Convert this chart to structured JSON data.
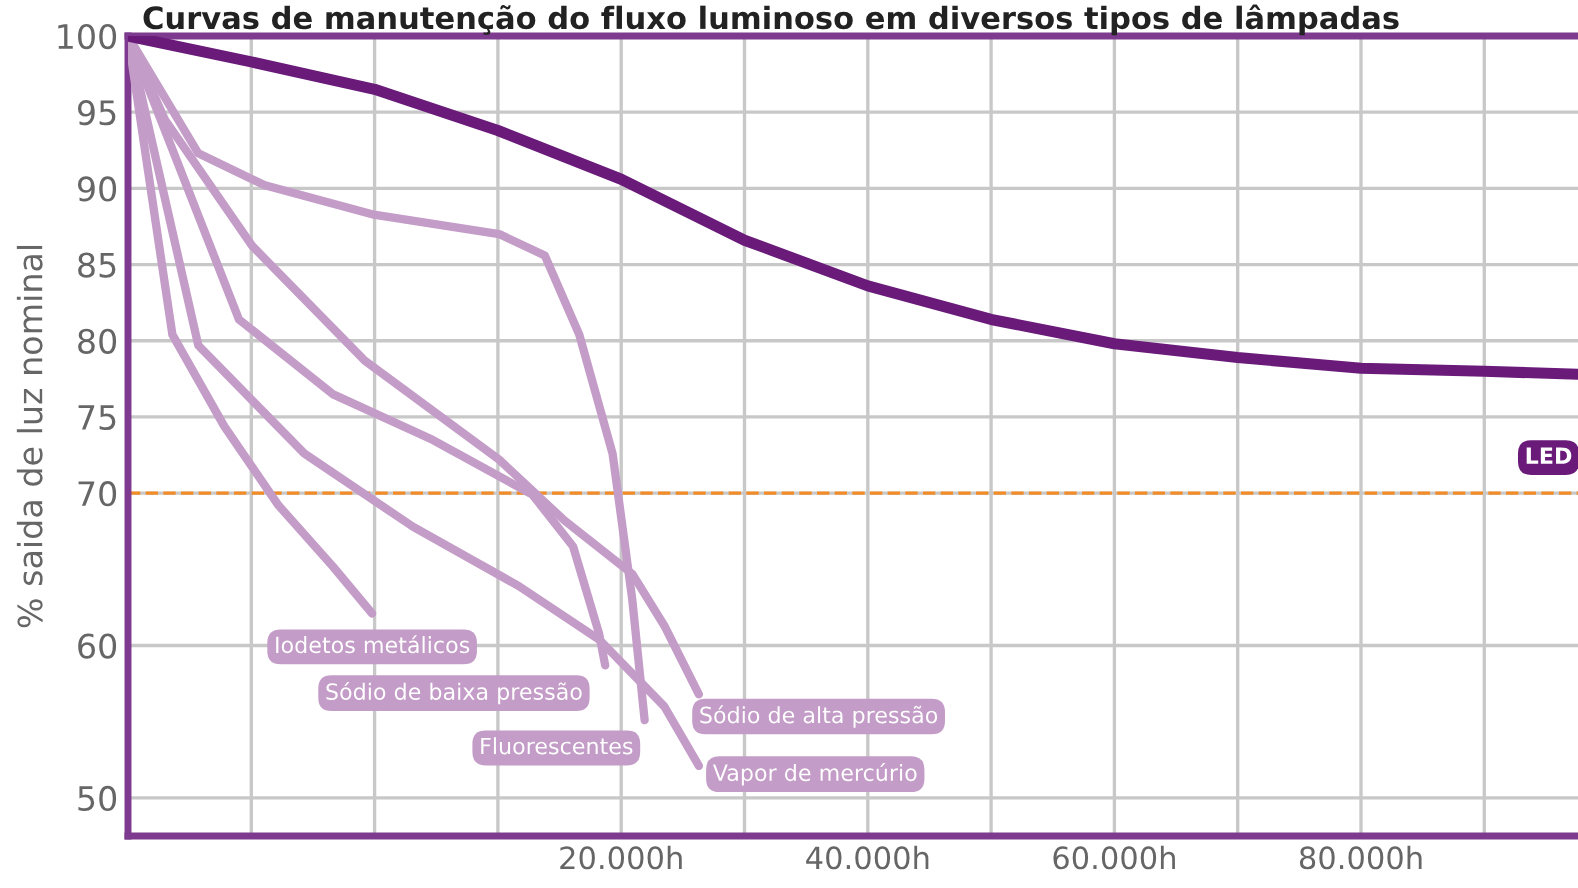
{
  "chart_data": {
    "type": "line",
    "title": "Curvas de manutenção do fluxo luminoso em diversos tipos de lâmpadas",
    "ylabel": "% saida de luz nominal",
    "xlim": [
      -20000,
      97600
    ],
    "ylim": [
      47.5,
      100
    ],
    "xticks": [
      {
        "value": -10000,
        "label": null
      },
      {
        "value": 0,
        "label": null
      },
      {
        "value": 10000,
        "label": null
      },
      {
        "value": 20000,
        "label": "20.000h"
      },
      {
        "value": 30000,
        "label": null
      },
      {
        "value": 40000,
        "label": "40.000h"
      },
      {
        "value": 50000,
        "label": null
      },
      {
        "value": 60000,
        "label": "60.000h"
      },
      {
        "value": 70000,
        "label": null
      },
      {
        "value": 80000,
        "label": "80.000h"
      },
      {
        "value": 90000,
        "label": null
      }
    ],
    "yticks": [
      50,
      60,
      70,
      75,
      80,
      85,
      90,
      95,
      100
    ],
    "grid": true,
    "legend": false,
    "marker": "none",
    "line_style": "solid",
    "ref_lines": [
      {
        "axis": "y",
        "value": 70,
        "color": "#f28c28",
        "line_style": "dashed"
      }
    ],
    "series": [
      {
        "name": "LED",
        "color": "#6a1b7a",
        "x": [
          -20000,
          -10000,
          0,
          10000,
          20000,
          30000,
          40000,
          50000,
          60000,
          70000,
          80000,
          90000,
          97600
        ],
        "values": [
          100,
          98.3,
          96.5,
          93.8,
          90.6,
          86.6,
          83.6,
          81.4,
          79.8,
          78.9,
          78.2,
          78.0,
          77.8
        ]
      },
      {
        "name": "Iodetos metálicos",
        "color": "#c49cc8",
        "x": [
          -20000,
          -16400,
          -12200,
          -7800,
          -3400,
          -200
        ],
        "values": [
          100,
          80.4,
          74.4,
          69.2,
          65.2,
          62.1
        ]
      },
      {
        "name": "Sódio de baixa pressão",
        "color": "#c49cc8",
        "x": [
          -20000,
          -11000,
          -3400,
          4700,
          12800,
          16100,
          18200,
          18700
        ],
        "values": [
          100,
          81.4,
          76.5,
          73.5,
          69.9,
          66.5,
          60.8,
          58.7
        ]
      },
      {
        "name": "Fluorescentes",
        "color": "#c49cc8",
        "x": [
          -20000,
          -14300,
          -8900,
          -200,
          10100,
          13800,
          16600,
          19300,
          20900,
          21900
        ],
        "values": [
          100,
          92.3,
          90.2,
          88.3,
          87.0,
          85.6,
          80.4,
          72.6,
          63.0,
          55.1
        ]
      },
      {
        "name": "Sódio de alta pressão",
        "color": "#c49cc8",
        "x": [
          -20000,
          -17000,
          -9900,
          -800,
          10100,
          15400,
          20900,
          23500,
          26300
        ],
        "values": [
          100,
          94.5,
          86.2,
          78.7,
          72.2,
          68.2,
          64.7,
          61.3,
          56.8
        ]
      },
      {
        "name": "Vapor de mercúrio",
        "color": "#c49cc8",
        "x": [
          -20000,
          -14300,
          -5700,
          3100,
          11700,
          18200,
          23500,
          26300
        ],
        "values": [
          100,
          79.7,
          72.6,
          67.8,
          63.9,
          60.4,
          56.0,
          52.1
        ]
      }
    ]
  }
}
